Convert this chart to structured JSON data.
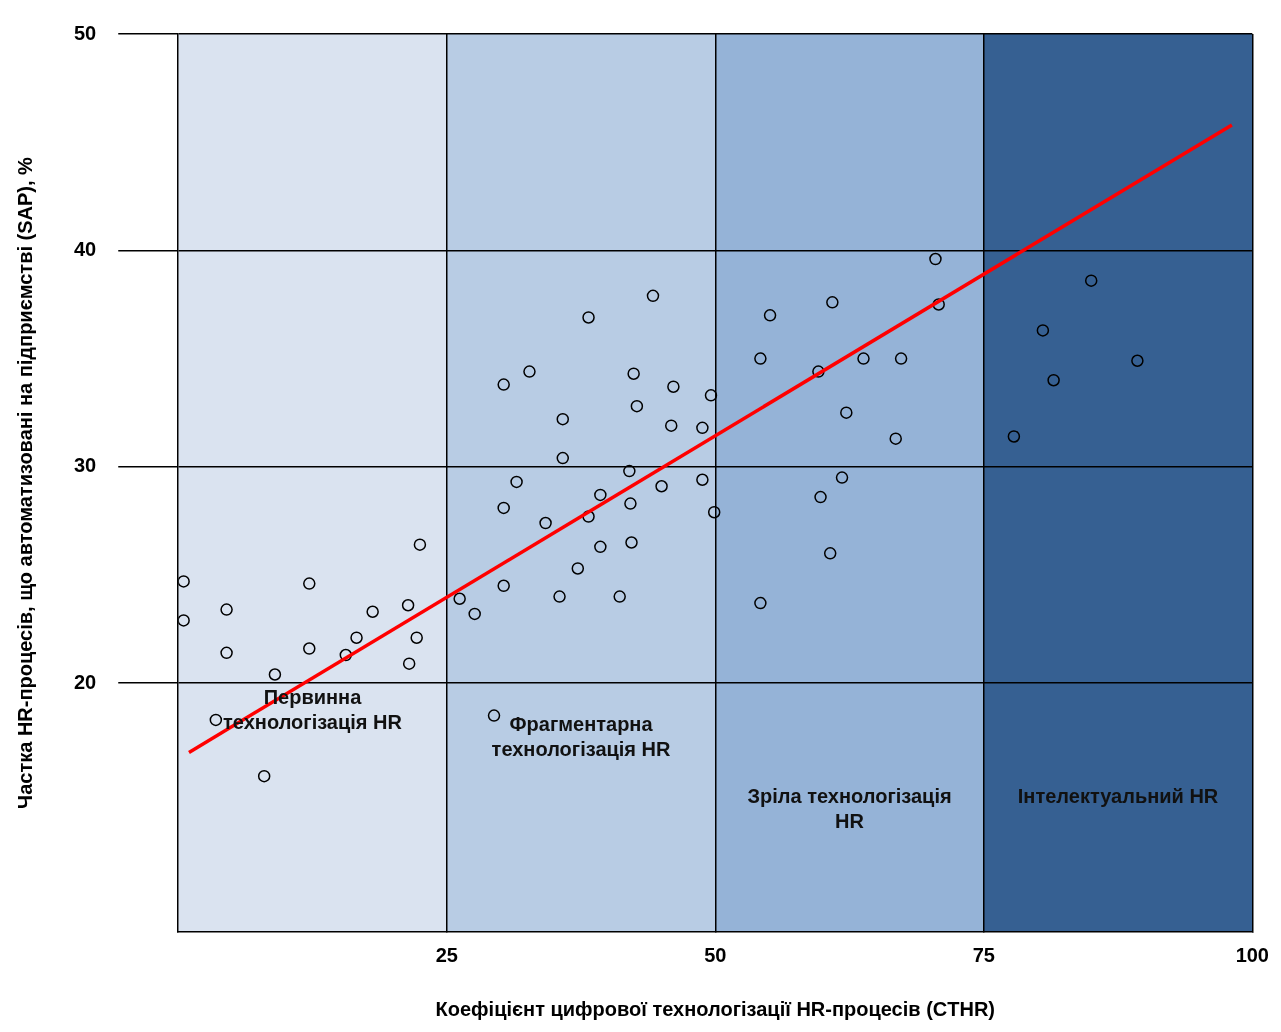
{
  "chart_data": {
    "type": "scatter",
    "xlabel": "Коефіцієнт цифрової технологізації HR-процесів (CTHR)",
    "ylabel": "Частка HR-процесів, що автоматизовані на підприємстві (SAP), %",
    "xlim": [
      0,
      100
    ],
    "xticks": [
      25,
      50,
      75,
      100
    ],
    "ylim": [
      8.5,
      50
    ],
    "yticks": [
      20,
      30,
      40,
      50
    ],
    "grid": true,
    "legend": false,
    "marker": "circle",
    "bands": [
      {
        "axis": "x",
        "from": 0,
        "to": 25,
        "label": "Первинна технологізація HR",
        "color": "#dae3f0"
      },
      {
        "axis": "x",
        "from": 25,
        "to": 50,
        "label": "Фрагментарна технологізація   HR",
        "color": "#b8cce4"
      },
      {
        "axis": "x",
        "from": 50,
        "to": 75,
        "label": "Зріла технологізація HR",
        "color": "#95b3d7"
      },
      {
        "axis": "x",
        "from": 75,
        "to": 100,
        "label": "Інтелектуальний HR",
        "color": "#366092"
      }
    ],
    "series": [
      {
        "color": "#000000",
        "x": [
          0.5,
          0.5,
          4.5,
          4.5,
          3.5,
          8.0,
          9.0,
          12.2,
          12.2,
          15.6,
          16.6,
          18.1,
          21.4,
          21.5,
          22.2,
          22.5,
          26.2,
          27.6,
          29.4,
          30.3,
          30.3,
          30.3,
          31.5,
          32.7,
          34.2,
          35.5,
          35.8,
          35.8,
          37.2,
          38.2,
          38.2,
          39.3,
          39.3,
          41.1,
          42.0,
          42.1,
          42.2,
          42.4,
          42.7,
          44.2,
          45.0,
          45.9,
          46.1,
          48.8,
          48.8,
          49.6,
          49.9,
          54.2,
          54.2,
          55.1,
          59.6,
          59.8,
          60.7,
          60.9,
          61.8,
          62.2,
          63.8,
          66.8,
          67.3,
          70.5,
          70.8,
          77.8,
          80.5,
          81.5,
          85.0,
          89.3
        ],
        "values": [
          24.7,
          22.9,
          23.4,
          21.4,
          18.3,
          15.7,
          20.4,
          24.6,
          21.6,
          21.3,
          22.1,
          23.3,
          23.6,
          20.9,
          22.1,
          26.4,
          23.9,
          23.2,
          18.5,
          33.8,
          28.1,
          24.5,
          29.3,
          34.4,
          27.4,
          24.0,
          32.2,
          30.4,
          25.3,
          36.9,
          27.7,
          28.7,
          26.3,
          24.0,
          29.8,
          28.3,
          26.5,
          34.3,
          32.8,
          37.9,
          29.1,
          31.9,
          33.7,
          31.8,
          29.4,
          33.3,
          27.9,
          35.0,
          23.7,
          37.0,
          34.4,
          28.6,
          26.0,
          37.6,
          29.5,
          32.5,
          35.0,
          31.3,
          35.0,
          39.6,
          37.5,
          31.4,
          36.3,
          34.0,
          38.6,
          34.9
        ]
      },
      {
        "type": "line",
        "color": "#ff0000",
        "x": [
          1.0,
          98.1
        ],
        "values": [
          16.8,
          45.8
        ],
        "marker": "none"
      }
    ]
  }
}
